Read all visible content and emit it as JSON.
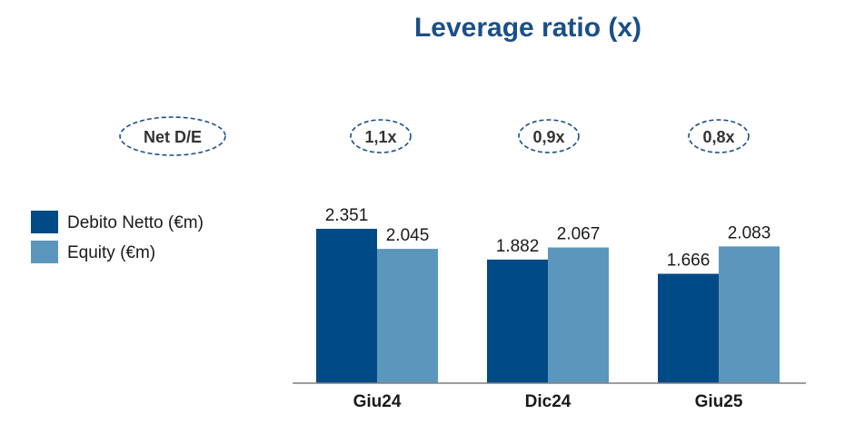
{
  "chart_data": {
    "type": "bar",
    "title": "Leverage ratio (x)",
    "categories": [
      "Giu24",
      "Dic24",
      "Giu25"
    ],
    "series": [
      {
        "name": "Debito Netto (€m)",
        "values": [
          2351,
          1882,
          1666
        ],
        "labels": [
          "2.351",
          "1.882",
          "1.666"
        ],
        "color": "#004a86"
      },
      {
        "name": "Equity (€m)",
        "values": [
          2045,
          2067,
          2083
        ],
        "labels": [
          "2.045",
          "2.067",
          "2.083"
        ],
        "color": "#5b97bd"
      }
    ],
    "net_de": {
      "label": "Net D/E",
      "values": [
        "1,1x",
        "0,9x",
        "0,8x"
      ]
    },
    "ylim": [
      0,
      2600
    ],
    "grid": false,
    "legend_position": "left"
  },
  "colors": {
    "title": "#1b4f87",
    "ellipse_stroke": "#1b4f87",
    "axis": "#7f7f7f"
  }
}
